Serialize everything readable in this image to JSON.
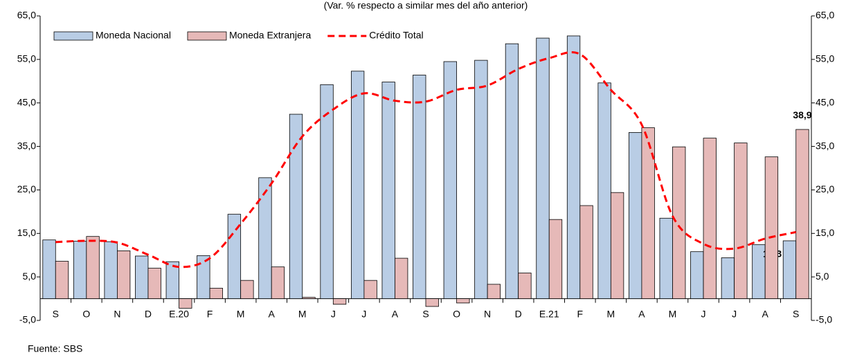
{
  "chart_data": {
    "type": "bar-line",
    "subtitle": "(Var. % respecto a similar mes del año anterior)",
    "source": "Fuente: SBS",
    "categories": [
      "S",
      "O",
      "N",
      "D",
      "E.20",
      "F",
      "M",
      "A",
      "M",
      "J",
      "J",
      "A",
      "S",
      "O",
      "N",
      "D",
      "E.21",
      "F",
      "M",
      "A",
      "M",
      "J",
      "J",
      "A",
      "S"
    ],
    "series": [
      {
        "name": "Moneda Nacional",
        "kind": "bar",
        "color": "#b9cde5",
        "values": [
          13.5,
          13.2,
          13.1,
          9.8,
          8.5,
          9.9,
          19.4,
          27.8,
          42.4,
          49.2,
          52.3,
          49.8,
          51.4,
          54.5,
          54.8,
          58.6,
          59.9,
          60.4,
          49.6,
          38.2,
          18.5,
          10.8,
          9.4,
          12.4,
          13.3
        ],
        "value_labels": [
          null,
          null,
          null,
          null,
          null,
          null,
          null,
          null,
          null,
          null,
          null,
          null,
          null,
          null,
          null,
          null,
          null,
          null,
          null,
          null,
          null,
          null,
          null,
          null,
          "13,3"
        ]
      },
      {
        "name": "Moneda Extranjera",
        "kind": "bar",
        "color": "#e6b9b8",
        "values": [
          8.6,
          14.3,
          11.0,
          7.0,
          -2.2,
          2.4,
          4.2,
          7.3,
          0.3,
          -1.3,
          4.2,
          9.3,
          -1.8,
          -1.0,
          3.3,
          5.9,
          18.2,
          21.4,
          24.4,
          39.3,
          34.9,
          36.9,
          35.8,
          32.6,
          38.9
        ],
        "value_labels": [
          null,
          null,
          null,
          null,
          null,
          null,
          null,
          null,
          null,
          null,
          null,
          null,
          null,
          null,
          null,
          null,
          null,
          null,
          null,
          null,
          null,
          null,
          null,
          null,
          "38,9"
        ]
      },
      {
        "name": "Crédito Total",
        "kind": "line",
        "color": "#ff0000",
        "values": [
          13.0,
          13.3,
          12.9,
          10.1,
          7.3,
          9.3,
          17.2,
          26.5,
          37.3,
          43.5,
          47.2,
          45.5,
          45.3,
          48.0,
          49.0,
          52.8,
          55.3,
          56.2,
          48.0,
          40.0,
          19.0,
          12.6,
          11.5,
          13.8,
          15.3
        ]
      }
    ],
    "ylim": [
      -5,
      65
    ],
    "yticks": [
      {
        "value": -5,
        "label": "-5,0"
      },
      {
        "value": 5,
        "label": "5,0"
      },
      {
        "value": 15,
        "label": "15,0"
      },
      {
        "value": 25,
        "label": "25,0"
      },
      {
        "value": 35,
        "label": "35,0"
      },
      {
        "value": 45,
        "label": "45,0"
      },
      {
        "value": 55,
        "label": "55,0"
      },
      {
        "value": 65,
        "label": "65,0"
      }
    ],
    "y2lim": [
      -5,
      65
    ],
    "y2ticks": [
      {
        "value": -5,
        "label": "-5,0"
      },
      {
        "value": 5,
        "label": "5,0"
      },
      {
        "value": 15,
        "label": "15,0"
      },
      {
        "value": 25,
        "label": "25,0"
      },
      {
        "value": 35,
        "label": "35,0"
      },
      {
        "value": 45,
        "label": "45,0"
      },
      {
        "value": 55,
        "label": "55,0"
      },
      {
        "value": 65,
        "label": "65,0"
      }
    ],
    "grid": false,
    "legend": "top-left"
  }
}
